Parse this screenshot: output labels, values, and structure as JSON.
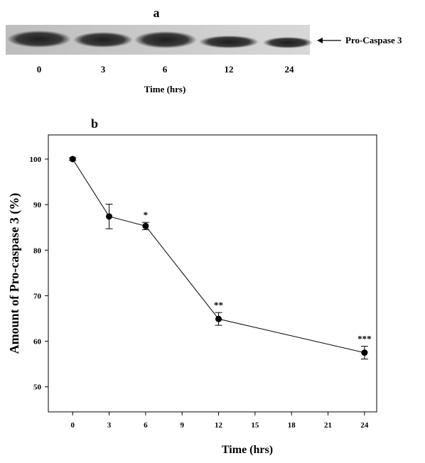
{
  "blot": {
    "panel_label": "a",
    "lanes": [
      "0",
      "3",
      "6",
      "12",
      "24"
    ],
    "xlabel": "Time (hrs)",
    "band_label": "Pro-Caspase 3"
  },
  "chart_data": {
    "type": "line",
    "panel_label": "b",
    "xlabel": "Time (hrs)",
    "ylabel": "Amount of Pro-caspase 3 (%)",
    "x": [
      0,
      3,
      6,
      12,
      24
    ],
    "values": [
      100,
      87.4,
      85.3,
      64.9,
      57.5
    ],
    "errors": [
      0.3,
      2.7,
      0.8,
      1.4,
      1.4
    ],
    "color": "#000000",
    "xlim": [
      -2,
      25
    ],
    "xticks": [
      0,
      3,
      6,
      9,
      12,
      15,
      18,
      21,
      24
    ],
    "ylim": [
      44.5,
      105.3
    ],
    "yticks": [
      50,
      60,
      70,
      80,
      90,
      100
    ],
    "annotations": [
      {
        "x": 6,
        "text": "*"
      },
      {
        "x": 12,
        "text": "**"
      },
      {
        "x": 24,
        "text": "***"
      }
    ]
  }
}
